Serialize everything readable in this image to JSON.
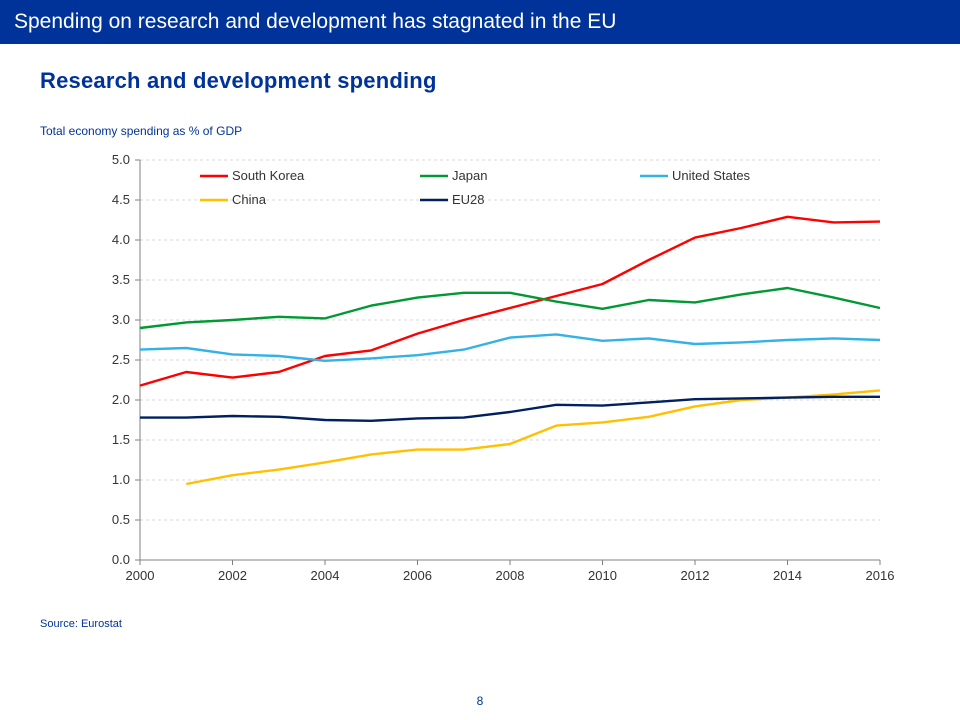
{
  "header": {
    "title": "Spending on research and development has stagnated in the EU"
  },
  "chart": {
    "title": "Research and development spending",
    "subtitle": "Total economy spending as % of GDP",
    "type": "line",
    "background_color": "#ffffff",
    "grid_color": "#d9d9d9",
    "axis_color": "#808080",
    "text_color": "#333333",
    "title_color": "#003399",
    "x": {
      "min": 2000,
      "max": 2016,
      "tick_step": 2,
      "ticks": [
        2000,
        2002,
        2004,
        2006,
        2008,
        2010,
        2012,
        2014,
        2016
      ]
    },
    "y": {
      "min": 0.0,
      "max": 5.0,
      "tick_step": 0.5,
      "ticks": [
        0.0,
        0.5,
        1.0,
        1.5,
        2.0,
        2.5,
        3.0,
        3.5,
        4.0,
        4.5,
        5.0
      ]
    },
    "line_width": 2.4,
    "series": [
      {
        "name": "South Korea",
        "color": "#ff0000",
        "x": [
          2000,
          2001,
          2002,
          2003,
          2004,
          2005,
          2006,
          2007,
          2008,
          2009,
          2010,
          2011,
          2012,
          2013,
          2014,
          2015,
          2016
        ],
        "y": [
          2.18,
          2.35,
          2.28,
          2.35,
          2.55,
          2.62,
          2.83,
          3.0,
          3.15,
          3.3,
          3.45,
          3.75,
          4.03,
          4.15,
          4.29,
          4.22,
          4.23
        ]
      },
      {
        "name": "Japan",
        "color": "#009933",
        "x": [
          2000,
          2001,
          2002,
          2003,
          2004,
          2005,
          2006,
          2007,
          2008,
          2009,
          2010,
          2011,
          2012,
          2013,
          2014,
          2015,
          2016
        ],
        "y": [
          2.9,
          2.97,
          3.0,
          3.04,
          3.02,
          3.18,
          3.28,
          3.34,
          3.34,
          3.23,
          3.14,
          3.25,
          3.22,
          3.32,
          3.4,
          3.28,
          3.15
        ]
      },
      {
        "name": "United States",
        "color": "#33b2e6",
        "x": [
          2000,
          2001,
          2002,
          2003,
          2004,
          2005,
          2006,
          2007,
          2008,
          2009,
          2010,
          2011,
          2012,
          2013,
          2014,
          2015,
          2016
        ],
        "y": [
          2.63,
          2.65,
          2.57,
          2.55,
          2.49,
          2.52,
          2.56,
          2.63,
          2.78,
          2.82,
          2.74,
          2.77,
          2.7,
          2.72,
          2.75,
          2.77,
          2.75
        ]
      },
      {
        "name": "China",
        "color": "#ffc000",
        "x": [
          2001,
          2002,
          2003,
          2004,
          2005,
          2006,
          2007,
          2008,
          2009,
          2010,
          2011,
          2012,
          2013,
          2014,
          2015,
          2016
        ],
        "y": [
          0.95,
          1.06,
          1.13,
          1.22,
          1.32,
          1.38,
          1.38,
          1.45,
          1.68,
          1.72,
          1.79,
          1.92,
          2.0,
          2.03,
          2.07,
          2.12
        ]
      },
      {
        "name": "EU28",
        "color": "#002060",
        "x": [
          2000,
          2001,
          2002,
          2003,
          2004,
          2005,
          2006,
          2007,
          2008,
          2009,
          2010,
          2011,
          2012,
          2013,
          2014,
          2015,
          2016
        ],
        "y": [
          1.78,
          1.78,
          1.8,
          1.79,
          1.75,
          1.74,
          1.77,
          1.78,
          1.85,
          1.94,
          1.93,
          1.97,
          2.01,
          2.02,
          2.03,
          2.04,
          2.04
        ]
      }
    ],
    "legend": {
      "position": "top",
      "items_per_row": 3,
      "row1": [
        "South Korea",
        "Japan",
        "United States"
      ],
      "row2": [
        "China",
        "EU28"
      ]
    }
  },
  "source": "Source: Eurostat",
  "page_number": "8"
}
